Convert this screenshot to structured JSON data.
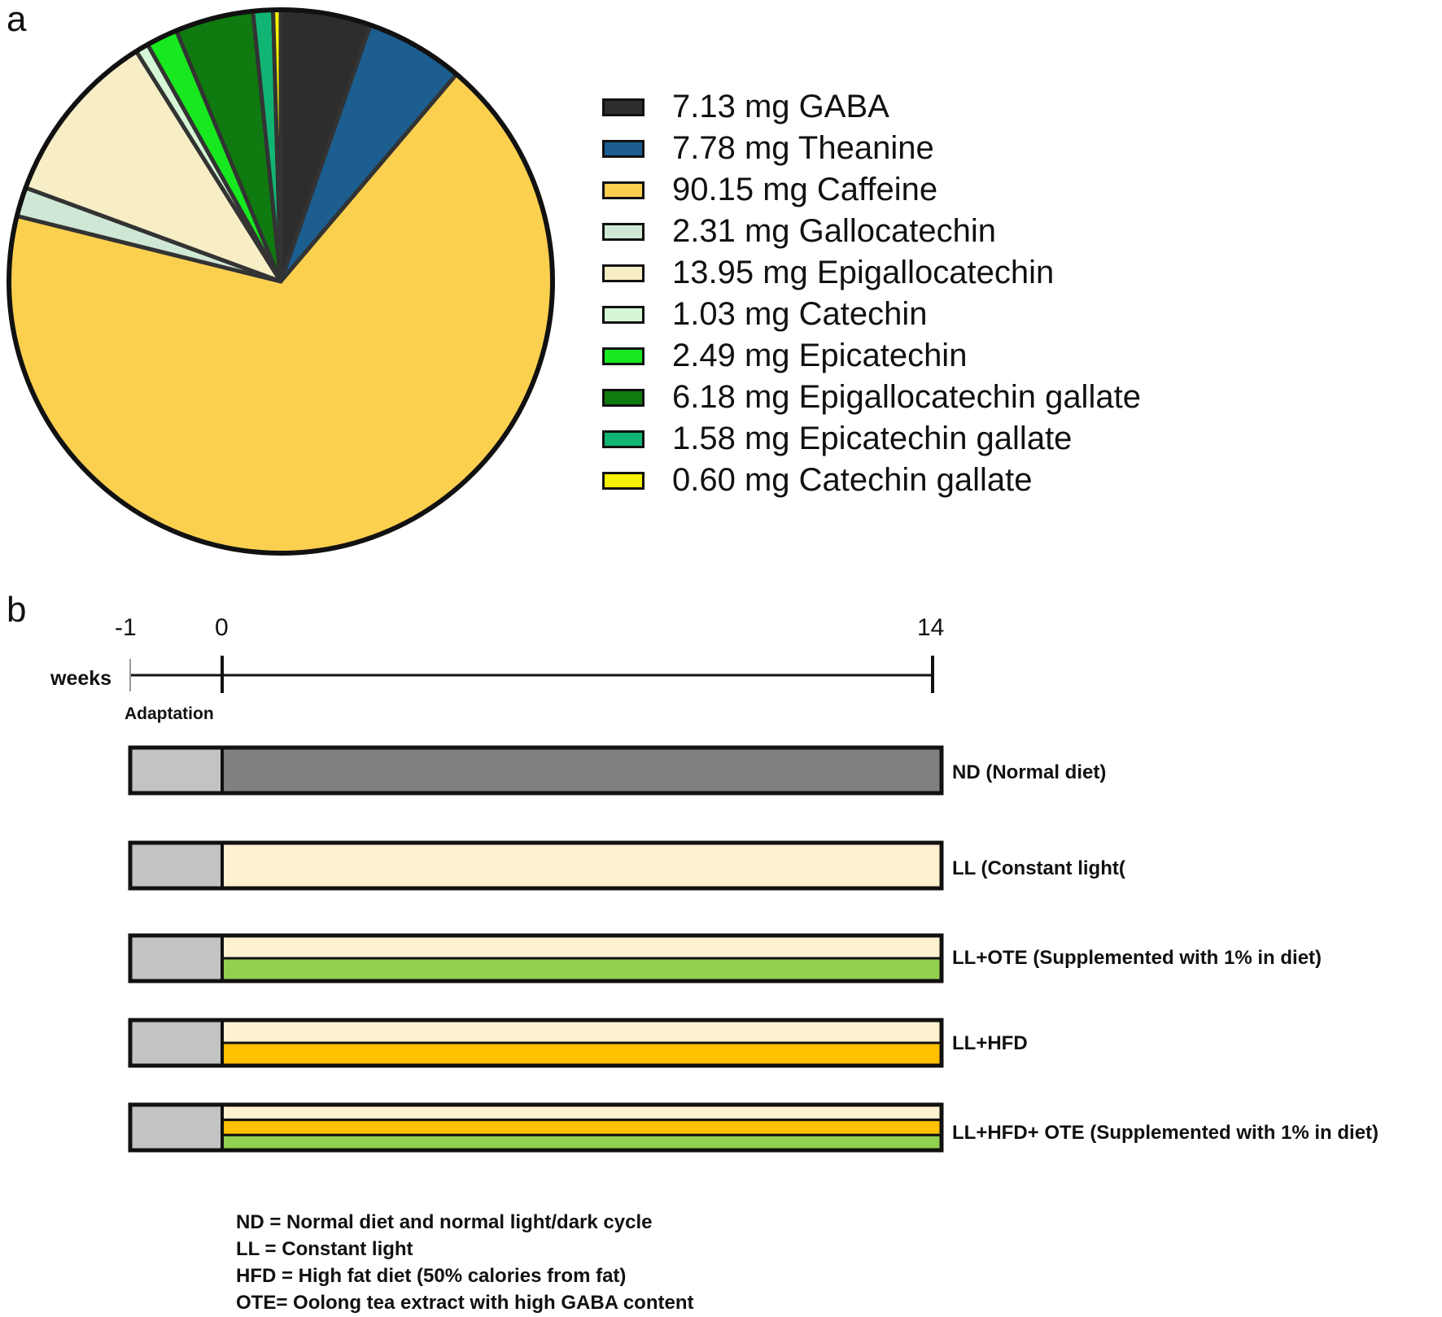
{
  "panels": {
    "a": "a",
    "b": "b"
  },
  "chart_data": [
    {
      "type": "pie",
      "title": "",
      "start_angle_deg": 0,
      "direction": "clockwise",
      "slices": [
        {
          "label": "7.13 mg GABA",
          "value": 7.13,
          "color": "#2d2d2d"
        },
        {
          "label": "7.78 mg Theanine",
          "value": 7.78,
          "color": "#1b5e8f"
        },
        {
          "label": "90.15 mg Caffeine",
          "value": 90.15,
          "color": "#fcd04f"
        },
        {
          "label": "2.31 mg Gallocatechin",
          "value": 2.31,
          "color": "#cfe8d5"
        },
        {
          "label": "13.95 mg Epigallocatechin",
          "value": 13.95,
          "color": "#f8eec6"
        },
        {
          "label": "1.03 mg Catechin",
          "value": 1.03,
          "color": "#d6f7d6"
        },
        {
          "label": "2.49 mg Epicatechin",
          "value": 2.49,
          "color": "#17e81f"
        },
        {
          "label": "6.18 mg Epigallocatechin gallate",
          "value": 6.18,
          "color": "#0f7a0f"
        },
        {
          "label": "1.58 mg Epicatechin gallate",
          "value": 1.58,
          "color": "#10b574"
        },
        {
          "label": "0.60 mg Catechin gallate",
          "value": 0.6,
          "color": "#f7f200"
        }
      ],
      "legend_position": "right"
    },
    {
      "type": "timeline",
      "axis_label": "weeks",
      "ticks": [
        {
          "label": "-1",
          "value": -1
        },
        {
          "label": "0",
          "value": 0
        },
        {
          "label": "14",
          "value": 14
        }
      ],
      "phase_label": "Adaptation",
      "adaptation_color": "#c3c3c3",
      "groups": [
        {
          "label": "ND (Normal diet)",
          "stripes": [
            "#808080"
          ]
        },
        {
          "label": "LL (Constant light(",
          "stripes": [
            "#fef1cf"
          ]
        },
        {
          "label": "LL+OTE (Supplemented with 1% in diet)",
          "stripes": [
            "#fef1cf",
            "#92d050"
          ]
        },
        {
          "label": "LL+HFD",
          "stripes": [
            "#fef1cf",
            "#ffc000"
          ]
        },
        {
          "label": "LL+HFD+ OTE (Supplemented with 1% in diet)",
          "stripes": [
            "#fef1cf",
            "#ffc000",
            "#92d050"
          ]
        }
      ],
      "notes": [
        "ND = Normal diet and normal light/dark cycle",
        "LL = Constant light",
        "HFD = High fat diet (50% calories from fat)",
        "OTE= Oolong tea extract with high GABA content"
      ]
    }
  ]
}
